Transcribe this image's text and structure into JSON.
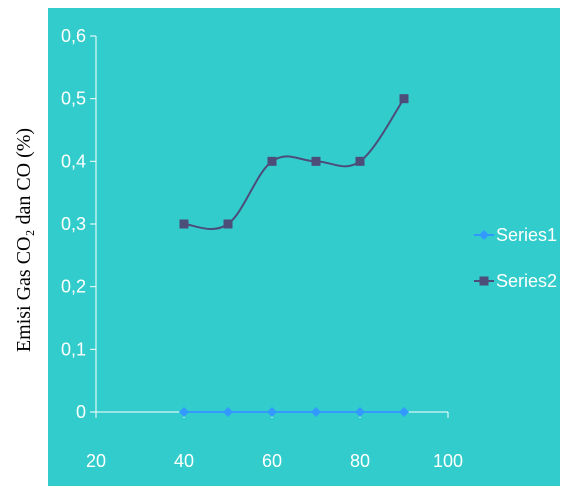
{
  "chart_data": {
    "type": "line",
    "title": "",
    "xlabel": "",
    "ylabel": "Emisi Gas CO₂ dan  CO (%)",
    "xlim": [
      20,
      100
    ],
    "ylim": [
      0,
      0.6
    ],
    "x_ticks": [
      20,
      40,
      60,
      80,
      100
    ],
    "x_tick_labels": [
      "20",
      "40",
      "60",
      "80",
      "100"
    ],
    "y_ticks": [
      0,
      0.1,
      0.2,
      0.3,
      0.4,
      0.5,
      0.6
    ],
    "y_tick_labels": [
      "0",
      "0,1",
      "0,2",
      "0,3",
      "0,4",
      "0,5",
      "0,6"
    ],
    "grid": false,
    "legend_position": "right",
    "background_color": "#33CCCC",
    "series": [
      {
        "name": "Series1",
        "color": "#3399FF",
        "marker": "diamond",
        "x": [
          40,
          50,
          60,
          70,
          80,
          90
        ],
        "y": [
          0,
          0,
          0,
          0,
          0,
          0
        ]
      },
      {
        "name": "Series2",
        "color": "#4D4D7A",
        "marker": "square",
        "smooth": true,
        "x": [
          40,
          50,
          60,
          70,
          80,
          90
        ],
        "y": [
          0.3,
          0.3,
          0.4,
          0.4,
          0.4,
          0.5
        ]
      }
    ]
  }
}
